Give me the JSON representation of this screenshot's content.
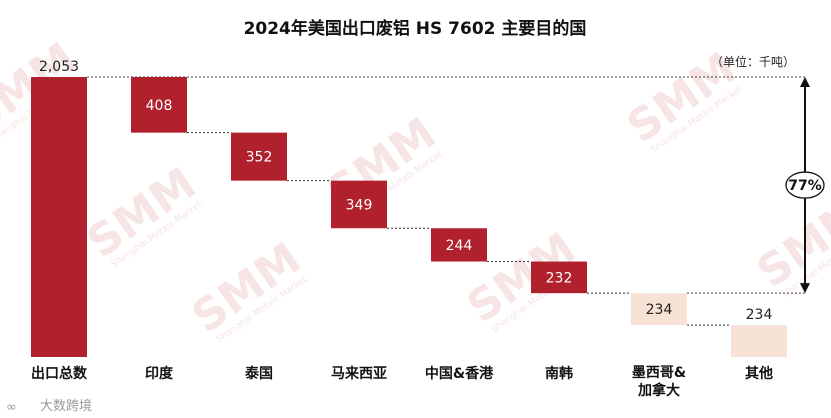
{
  "chart_data": {
    "type": "waterfall",
    "title": "2024年美国出口废铝 HS 7602 主要目的国",
    "unit_note": "（单位：千吨）",
    "total": {
      "category": "出口总数",
      "value": 2053,
      "label": "2,053"
    },
    "steps": [
      {
        "category": "印度",
        "value": 408,
        "label": "408"
      },
      {
        "category": "泰国",
        "value": 352,
        "label": "352"
      },
      {
        "category": "马来西亚",
        "value": 349,
        "label": "349"
      },
      {
        "category": "中国&香港",
        "value": 244,
        "label": "244"
      },
      {
        "category": "南韩",
        "value": 232,
        "label": "232"
      },
      {
        "category": "墨西哥&\n加拿大",
        "value": 234,
        "label": "234"
      },
      {
        "category": "其他",
        "value": 234,
        "label": "234"
      }
    ],
    "bracket_label": "77%",
    "ylim": [
      0,
      2053
    ],
    "colors": {
      "main": "#b0212d",
      "light": "#f6e3d6"
    }
  },
  "watermark": {
    "text": "SMM",
    "sub": "Shanghai Metals Market"
  },
  "corner_logo": {
    "text": "大数跨境"
  }
}
